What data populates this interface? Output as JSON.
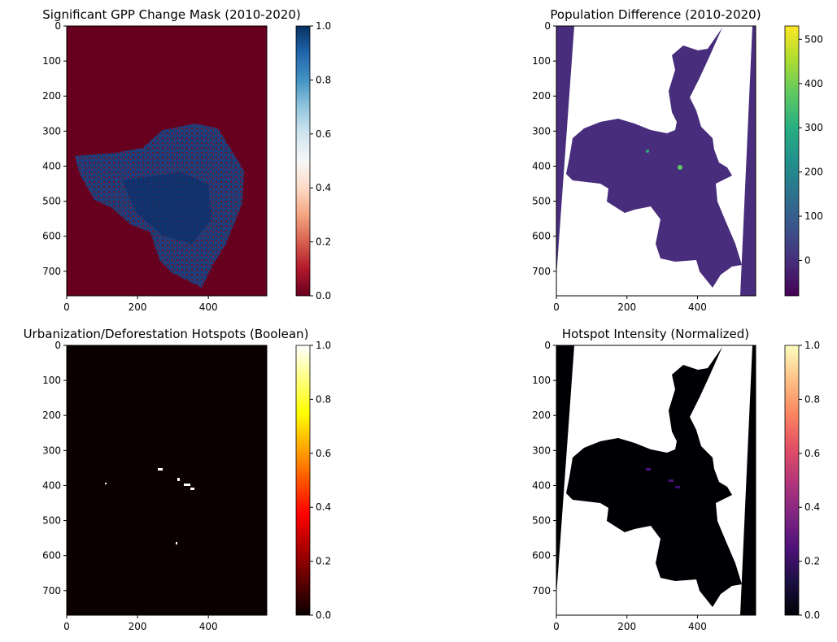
{
  "chart_data": [
    {
      "type": "heatmap",
      "title": "Significant GPP Change Mask (2010-2020)",
      "colormap": "RdBu",
      "background_value": 0.0,
      "x_ticks": [
        "0",
        "200",
        "400"
      ],
      "y_ticks": [
        "0",
        "100",
        "200",
        "300",
        "400",
        "500",
        "600",
        "700"
      ],
      "xlim": [
        0,
        565
      ],
      "ylim": [
        770,
        0
      ],
      "colorbar": {
        "range": [
          0.0,
          1.0
        ],
        "ticks": [
          "0.0",
          "0.2",
          "0.4",
          "0.6",
          "0.8",
          "1.0"
        ]
      }
    },
    {
      "type": "heatmap",
      "title": "Population Difference (2010-2020)",
      "colormap": "viridis",
      "background_value": 0,
      "x_ticks": [
        "0",
        "200",
        "400"
      ],
      "y_ticks": [
        "0",
        "100",
        "200",
        "300",
        "400",
        "500",
        "600",
        "700"
      ],
      "xlim": [
        0,
        565
      ],
      "ylim": [
        770,
        0
      ],
      "colorbar": {
        "range": [
          -80,
          530
        ],
        "ticks": [
          "0",
          "100",
          "200",
          "300",
          "400",
          "500"
        ]
      }
    },
    {
      "type": "heatmap",
      "title": "Urbanization/Deforestation Hotspots (Boolean)",
      "colormap": "hot",
      "background_value": 0.0,
      "x_ticks": [
        "0",
        "200",
        "400"
      ],
      "y_ticks": [
        "0",
        "100",
        "200",
        "300",
        "400",
        "500",
        "600",
        "700"
      ],
      "xlim": [
        0,
        565
      ],
      "ylim": [
        770,
        0
      ],
      "colorbar": {
        "range": [
          0.0,
          1.0
        ],
        "ticks": [
          "0.0",
          "0.2",
          "0.4",
          "0.6",
          "0.8",
          "1.0"
        ]
      }
    },
    {
      "type": "heatmap",
      "title": "Hotspot Intensity (Normalized)",
      "colormap": "magma",
      "background_value": 0.0,
      "x_ticks": [
        "0",
        "200",
        "400"
      ],
      "y_ticks": [
        "0",
        "100",
        "200",
        "300",
        "400",
        "500",
        "600",
        "700"
      ],
      "xlim": [
        0,
        565
      ],
      "ylim": [
        770,
        0
      ],
      "colorbar": {
        "range": [
          0.0,
          1.0
        ],
        "ticks": [
          "0.0",
          "0.2",
          "0.4",
          "0.6",
          "0.8",
          "1.0"
        ]
      }
    }
  ]
}
